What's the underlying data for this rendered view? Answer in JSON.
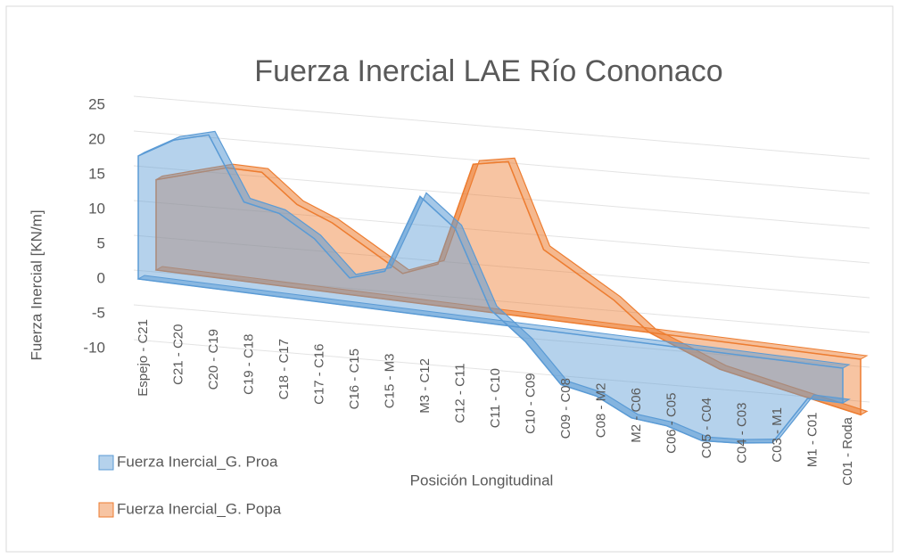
{
  "chart_data": {
    "type": "area3d",
    "title": "Fuerza Inercial LAE Río Cononaco",
    "x_label": "Posición Longitudinal",
    "y_label": "Fuerza Inercial [KN/m]",
    "categories": [
      "Espejo - C21",
      "C21 - C20",
      "C20 - C19",
      "C19 - C18",
      "C18 - C17",
      "C17 - C16",
      "C16 - C15",
      "C15 - M3",
      "M3 - C12",
      "C12 - C11",
      "C11 - C10",
      "C10 - C09",
      "C09 - C08",
      "C08 - M2",
      "M2 - C06",
      "C06 - C05",
      "C05 - C04",
      "C04 - C03",
      "C03 - M1",
      "M1 - C01",
      "C01 - Roda"
    ],
    "series": [
      {
        "name": "Fuerza Inercial_G. Proa",
        "color": "#5b9bd5",
        "values": [
          17.7,
          20.6,
          22,
          13,
          12,
          9,
          4,
          5.6,
          17,
          13,
          2,
          -2,
          -7.5,
          -8.5,
          -11,
          -11.5,
          -13,
          -12.7,
          -12,
          -5,
          -5
        ]
      },
      {
        "name": "Fuerza Inercial_G. Popa",
        "color": "#ed7d31",
        "values": [
          13,
          14.5,
          16,
          16,
          12,
          10,
          7,
          4,
          6,
          21,
          22,
          10,
          7,
          4,
          0,
          -2,
          -4,
          -5,
          -6,
          -7,
          -8
        ]
      }
    ],
    "ylim": [
      -10,
      25
    ],
    "yticks": [
      -10,
      -5,
      0,
      5,
      10,
      15,
      20,
      25
    ],
    "grid": true
  }
}
